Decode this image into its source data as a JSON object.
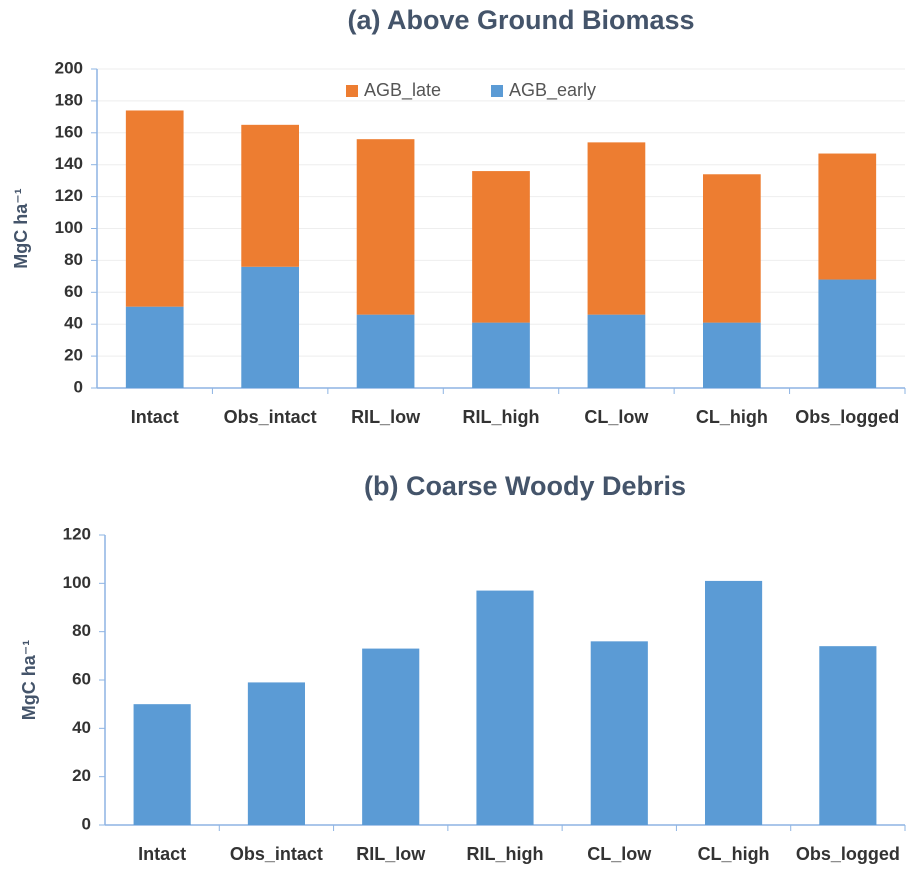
{
  "chart_data": [
    {
      "type": "stacked_bar",
      "title": "(a) Above Ground Biomass",
      "ylabel": "MgC ha⁻¹",
      "categories": [
        "Intact",
        "Obs_intact",
        "RIL_low",
        "RIL_high",
        "CL_low",
        "CL_high",
        "Obs_logged"
      ],
      "series": [
        {
          "name": "AGB_early",
          "color": "#5b9bd5",
          "values": [
            51,
            76,
            46,
            41,
            46,
            41,
            68
          ]
        },
        {
          "name": "AGB_late",
          "color": "#ed7d31",
          "values": [
            123,
            89,
            110,
            95,
            108,
            93,
            79
          ]
        }
      ],
      "ylim": [
        0,
        200
      ],
      "yticks": [
        0,
        20,
        40,
        60,
        80,
        100,
        120,
        140,
        160,
        180,
        200
      ],
      "grid": true,
      "legend": "top"
    },
    {
      "type": "bar",
      "title": "(b) Coarse Woody Debris",
      "ylabel": "MgC ha⁻¹",
      "categories": [
        "Intact",
        "Obs_intact",
        "RIL_low",
        "RIL_high",
        "CL_low",
        "CL_high",
        "Obs_logged"
      ],
      "values": [
        50,
        59,
        73,
        97,
        76,
        101,
        74
      ],
      "color": "#5b9bd5",
      "ylim": [
        0,
        120
      ],
      "yticks": [
        0,
        20,
        40,
        60,
        80,
        100,
        120
      ],
      "grid": false
    }
  ]
}
